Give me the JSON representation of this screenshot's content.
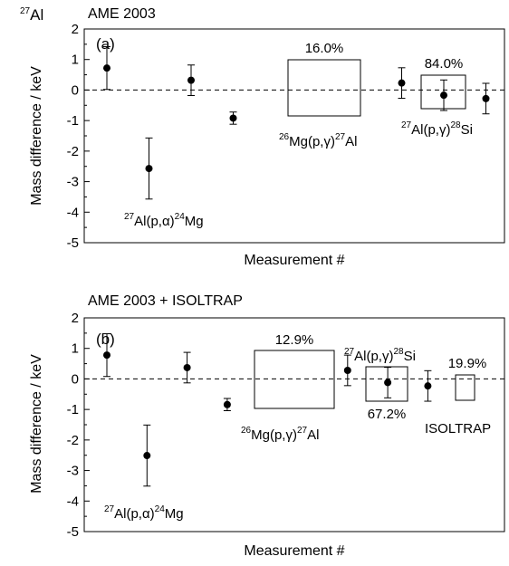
{
  "corner_label": {
    "text": "Al",
    "sup": "27"
  },
  "chart_data": [
    {
      "type": "scatter",
      "title": "AME 2003",
      "panel_label": "(a)",
      "xlabel": "Measurement #",
      "ylabel": "Mass difference / keV",
      "ylim": [
        -5,
        2
      ],
      "xlim": [
        0,
        18
      ],
      "yticks": [
        "2",
        "1",
        "0",
        "-1",
        "-2",
        "-3",
        "-4",
        "-5"
      ],
      "reference_line": {
        "y": 0,
        "style": "dashed"
      },
      "series": [
        {
          "x": [
            1,
            2,
            3,
            4
          ],
          "y": [
            0.72,
            -2.57,
            0.32,
            -0.92
          ],
          "err": [
            0.7,
            1.0,
            0.5,
            0.2
          ],
          "label": {
            "pre_sup": "27",
            "a": "Al(p,",
            "greek": "α",
            "b": ")",
            "mid_sup": "24",
            "c": "Mg"
          }
        },
        {
          "x": [
            8,
            9,
            10
          ],
          "y": [
            0.23,
            -0.17,
            -0.28
          ],
          "err": [
            0.5,
            0.5,
            0.5
          ],
          "weight": "16.0%",
          "label": {
            "pre_sup": "26",
            "a": "Mg(p,",
            "greek": "γ",
            "b": ")",
            "mid_sup": "27",
            "c": "Al"
          }
        },
        {
          "x": [
            13,
            14
          ],
          "y": [
            -0.25,
            0.05
          ],
          "err": [
            0.35,
            0.15
          ],
          "weight": "84.0%",
          "label": {
            "pre_sup": "27",
            "a": "Al(p,",
            "greek": "γ",
            "b": ")",
            "mid_sup": "28",
            "c": "Si"
          }
        }
      ]
    },
    {
      "type": "scatter",
      "title": "AME 2003 + ISOLTRAP",
      "panel_label": "(b)",
      "xlabel": "Measurement #",
      "ylabel": "Mass difference / keV",
      "ylim": [
        -5,
        2
      ],
      "xlim": [
        0,
        19
      ],
      "yticks": [
        "2",
        "1",
        "0",
        "-1",
        "-2",
        "-3",
        "-4",
        "-5"
      ],
      "reference_line": {
        "y": 0,
        "style": "dashed"
      },
      "series": [
        {
          "x": [
            1,
            2,
            3,
            4
          ],
          "y": [
            0.78,
            -2.51,
            0.37,
            -0.84
          ],
          "err": [
            0.7,
            1.0,
            0.5,
            0.2
          ],
          "label": {
            "pre_sup": "27",
            "a": "Al(p,",
            "greek": "α",
            "b": ")",
            "mid_sup": "24",
            "c": "Mg"
          }
        },
        {
          "x": [
            7,
            8,
            9
          ],
          "y": [
            0.28,
            -0.12,
            -0.23
          ],
          "err": [
            0.5,
            0.5,
            0.5
          ],
          "weight": "12.9%",
          "label": {
            "pre_sup": "26",
            "a": "Mg(p,",
            "greek": "γ",
            "b": ")",
            "mid_sup": "27",
            "c": "Al"
          }
        },
        {
          "x": [
            12,
            13
          ],
          "y": [
            -0.18,
            0.11
          ],
          "err": [
            0.3,
            0.15
          ],
          "weight": "67.2%",
          "label": {
            "pre_sup": "27",
            "a": "Al(p,",
            "greek": "γ",
            "b": ")",
            "mid_sup": "28",
            "c": "Si"
          }
        },
        {
          "x": [
            16
          ],
          "y": [
            -0.22
          ],
          "err": [
            0.25
          ],
          "weight": "19.9%",
          "label": {
            "text": "ISOLTRAP"
          }
        }
      ]
    }
  ]
}
